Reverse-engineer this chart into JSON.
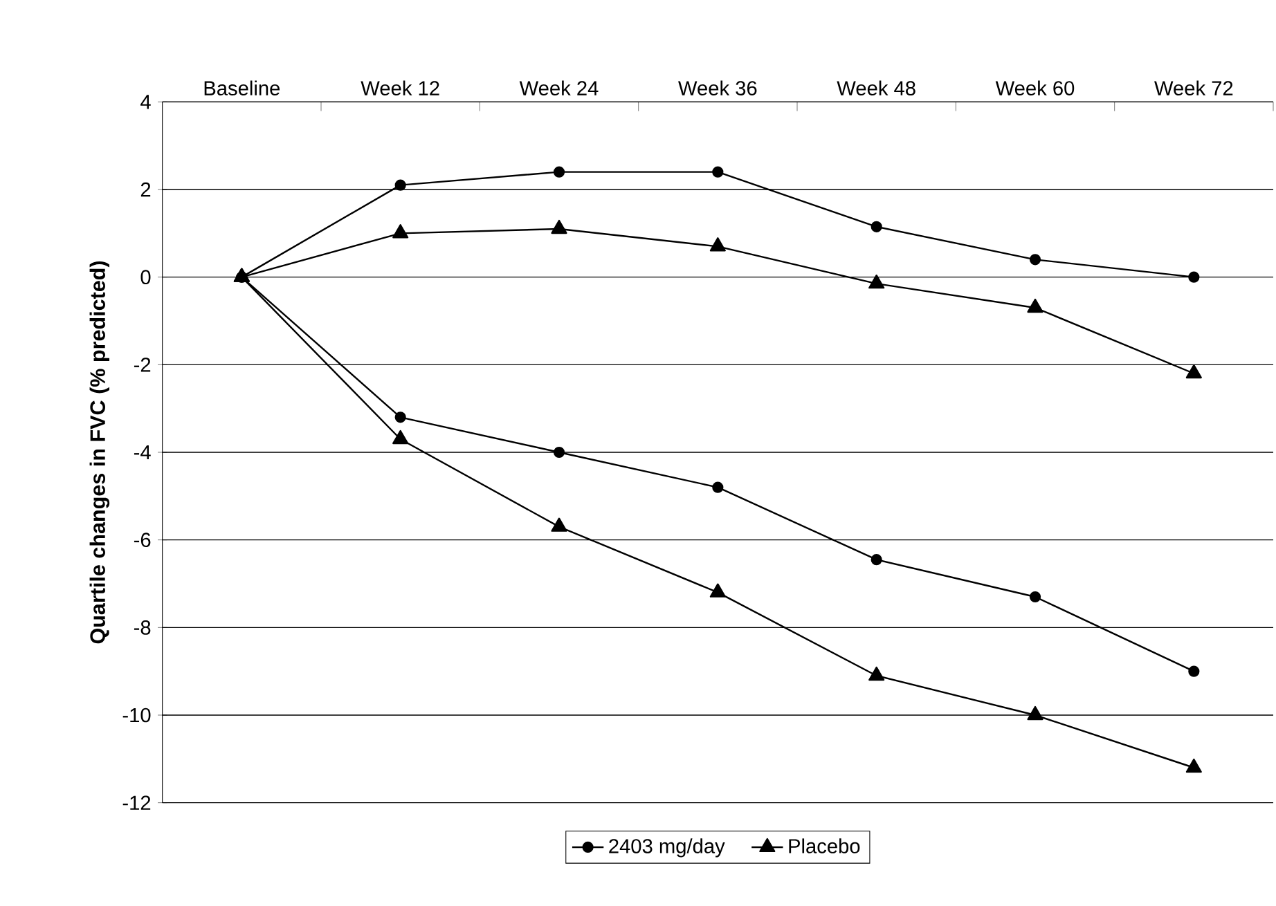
{
  "chart_data": {
    "type": "line",
    "ylabel": "Quartile changes in FVC (% predicted)",
    "categories": [
      "Baseline",
      "Week 12",
      "Week 24",
      "Week 36",
      "Week 48",
      "Week 60",
      "Week 72"
    ],
    "series": [
      {
        "name": "2403 mg/day",
        "color": "#000000",
        "marker": "circle",
        "values": [
          0,
          2.1,
          2.4,
          2.4,
          1.15,
          0.4,
          0.0
        ]
      },
      {
        "color": "#000000",
        "marker": "circle",
        "values": [
          0,
          -3.2,
          -4.0,
          -4.8,
          -6.45,
          -7.3,
          -9.0
        ]
      },
      {
        "name": "Placebo",
        "color": "#000000",
        "marker": "triangle",
        "values": [
          0,
          1.0,
          1.1,
          0.7,
          -0.15,
          -0.7,
          -2.2
        ]
      },
      {
        "color": "#000000",
        "marker": "triangle",
        "values": [
          0,
          -3.7,
          -5.7,
          -7.2,
          -9.1,
          -10.0,
          -11.2
        ]
      }
    ],
    "ylim": [
      -12,
      4
    ],
    "yticks": [
      -12,
      -10,
      -8,
      -6,
      -4,
      -2,
      0,
      2,
      4
    ],
    "grid": "y",
    "legend": "bottom",
    "line_style": "solid"
  }
}
